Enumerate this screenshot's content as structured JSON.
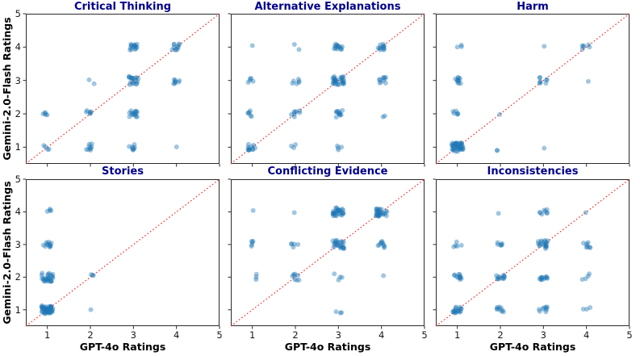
{
  "chart_data": {
    "type": "scatter",
    "layout": "2 rows x 3 columns of subplots",
    "xlabel": "GPT-4o Ratings",
    "ylabel": "Gemini-2.0-Flash Ratings",
    "xlim": [
      0.5,
      5
    ],
    "ylim": [
      0.5,
      5
    ],
    "xticks": [
      "1",
      "2",
      "3",
      "4",
      "5"
    ],
    "yticks": [
      "1",
      "2",
      "3",
      "4",
      "5"
    ],
    "grid": false,
    "diagonal_line": {
      "from": [
        0.5,
        0.5
      ],
      "to": [
        5,
        5
      ],
      "style": "dotted",
      "color": "#ff2a2a"
    },
    "point_color": "#1f77b4",
    "point_alpha": 0.42,
    "title_color": "#00008B",
    "note": "Each subplot shows jittered clusters of agreement points at integer rating pairs (x = GPT-4o rating, y = Gemini-2.0-Flash rating); n is the approximate number of points per cluster.",
    "subplots": [
      {
        "title": "Critical Thinking",
        "clusters": [
          {
            "x": 1,
            "y": 1,
            "n": 4
          },
          {
            "x": 1,
            "y": 2,
            "n": 5
          },
          {
            "x": 2,
            "y": 1,
            "n": 9
          },
          {
            "x": 2,
            "y": 2,
            "n": 6
          },
          {
            "x": 2,
            "y": 3,
            "n": 2
          },
          {
            "x": 3,
            "y": 1,
            "n": 8
          },
          {
            "x": 3,
            "y": 2,
            "n": 16
          },
          {
            "x": 3,
            "y": 3,
            "n": 20
          },
          {
            "x": 3,
            "y": 4,
            "n": 16
          },
          {
            "x": 4,
            "y": 1,
            "n": 1
          },
          {
            "x": 4,
            "y": 3,
            "n": 8
          },
          {
            "x": 4,
            "y": 4,
            "n": 11
          }
        ]
      },
      {
        "title": "Alternative Explanations",
        "clusters": [
          {
            "x": 1,
            "y": 1,
            "n": 12
          },
          {
            "x": 1,
            "y": 2,
            "n": 6
          },
          {
            "x": 1,
            "y": 3,
            "n": 5
          },
          {
            "x": 1,
            "y": 4,
            "n": 1
          },
          {
            "x": 2,
            "y": 1,
            "n": 3
          },
          {
            "x": 2,
            "y": 2,
            "n": 8
          },
          {
            "x": 2,
            "y": 3,
            "n": 6
          },
          {
            "x": 2,
            "y": 4,
            "n": 2
          },
          {
            "x": 3,
            "y": 1,
            "n": 4
          },
          {
            "x": 3,
            "y": 2,
            "n": 12
          },
          {
            "x": 3,
            "y": 3,
            "n": 32
          },
          {
            "x": 3,
            "y": 4,
            "n": 15
          },
          {
            "x": 4,
            "y": 2,
            "n": 2
          },
          {
            "x": 4,
            "y": 3,
            "n": 10
          },
          {
            "x": 4,
            "y": 4,
            "n": 12
          }
        ]
      },
      {
        "title": "Harm",
        "clusters": [
          {
            "x": 1,
            "y": 1,
            "n": 45
          },
          {
            "x": 1,
            "y": 2,
            "n": 6
          },
          {
            "x": 1,
            "y": 3,
            "n": 11
          },
          {
            "x": 1,
            "y": 4,
            "n": 3
          },
          {
            "x": 2,
            "y": 1,
            "n": 2
          },
          {
            "x": 2,
            "y": 2,
            "n": 1
          },
          {
            "x": 3,
            "y": 1,
            "n": 1
          },
          {
            "x": 3,
            "y": 3,
            "n": 8
          },
          {
            "x": 3,
            "y": 4,
            "n": 1
          },
          {
            "x": 4,
            "y": 3,
            "n": 1
          },
          {
            "x": 4,
            "y": 4,
            "n": 6
          }
        ]
      },
      {
        "title": "Stories",
        "clusters": [
          {
            "x": 1,
            "y": 1,
            "n": 50
          },
          {
            "x": 1,
            "y": 2,
            "n": 28
          },
          {
            "x": 1,
            "y": 3,
            "n": 12
          },
          {
            "x": 1,
            "y": 4,
            "n": 4
          },
          {
            "x": 2,
            "y": 1,
            "n": 1
          },
          {
            "x": 2,
            "y": 2,
            "n": 3
          }
        ]
      },
      {
        "title": "Conflicting Evidence",
        "clusters": [
          {
            "x": 1,
            "y": 2,
            "n": 3
          },
          {
            "x": 1,
            "y": 3,
            "n": 5
          },
          {
            "x": 1,
            "y": 4,
            "n": 1
          },
          {
            "x": 2,
            "y": 2,
            "n": 8
          },
          {
            "x": 2,
            "y": 3,
            "n": 5
          },
          {
            "x": 2,
            "y": 4,
            "n": 1
          },
          {
            "x": 3,
            "y": 1,
            "n": 3
          },
          {
            "x": 3,
            "y": 2,
            "n": 4
          },
          {
            "x": 3,
            "y": 3,
            "n": 25
          },
          {
            "x": 3,
            "y": 4,
            "n": 30
          },
          {
            "x": 4,
            "y": 2,
            "n": 1
          },
          {
            "x": 4,
            "y": 3,
            "n": 10
          },
          {
            "x": 4,
            "y": 4,
            "n": 30
          }
        ]
      },
      {
        "title": "Inconsistencies",
        "clusters": [
          {
            "x": 1,
            "y": 1,
            "n": 18
          },
          {
            "x": 1,
            "y": 2,
            "n": 12
          },
          {
            "x": 1,
            "y": 3,
            "n": 5
          },
          {
            "x": 2,
            "y": 1,
            "n": 9
          },
          {
            "x": 2,
            "y": 2,
            "n": 12
          },
          {
            "x": 2,
            "y": 3,
            "n": 6
          },
          {
            "x": 2,
            "y": 4,
            "n": 1
          },
          {
            "x": 3,
            "y": 1,
            "n": 9
          },
          {
            "x": 3,
            "y": 2,
            "n": 12
          },
          {
            "x": 3,
            "y": 3,
            "n": 20
          },
          {
            "x": 3,
            "y": 4,
            "n": 8
          },
          {
            "x": 4,
            "y": 1,
            "n": 3
          },
          {
            "x": 4,
            "y": 2,
            "n": 4
          },
          {
            "x": 4,
            "y": 3,
            "n": 8
          },
          {
            "x": 4,
            "y": 4,
            "n": 1
          }
        ]
      }
    ]
  }
}
